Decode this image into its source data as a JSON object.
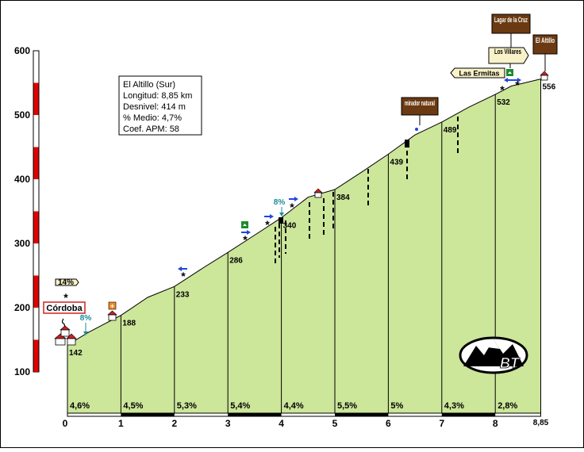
{
  "chart_data": {
    "type": "area",
    "title": "",
    "xlabel": "",
    "ylabel": "",
    "xlim": [
      0,
      8.85
    ],
    "ylim": [
      100,
      600
    ],
    "x_ticks": [
      "0",
      "1",
      "2",
      "3",
      "4",
      "5",
      "6",
      "7",
      "8",
      "8,85"
    ],
    "y_ticks": [
      "100",
      "200",
      "300",
      "400",
      "500",
      "600"
    ],
    "series": [
      {
        "x": [
          0,
          0.4,
          1,
          1.5,
          2,
          2.5,
          3,
          3.5,
          4,
          4.5,
          5,
          5.5,
          6,
          6.5,
          7,
          7.5,
          8,
          8.3,
          8.85
        ],
        "y": [
          142,
          162,
          188,
          216,
          233,
          260,
          286,
          313,
          340,
          372,
          384,
          411,
          439,
          469,
          489,
          512,
          532,
          545,
          556
        ]
      }
    ],
    "km_points": [
      {
        "km": 0,
        "alt": 142,
        "label": "142"
      },
      {
        "km": 1,
        "alt": 188,
        "label": "188"
      },
      {
        "km": 2,
        "alt": 233,
        "label": "233"
      },
      {
        "km": 3,
        "alt": 286,
        "label": "286"
      },
      {
        "km": 4,
        "alt": 340,
        "label": "340"
      },
      {
        "km": 5,
        "alt": 384,
        "label": "384"
      },
      {
        "km": 6,
        "alt": 439,
        "label": "439"
      },
      {
        "km": 7,
        "alt": 489,
        "label": "489"
      },
      {
        "km": 8,
        "alt": 532,
        "label": "532"
      },
      {
        "km": 8.85,
        "alt": 556,
        "label": "556"
      }
    ],
    "segment_gradients": [
      "4,6%",
      "4,5%",
      "5,3%",
      "5,4%",
      "4,4%",
      "5,5%",
      "5%",
      "4,3%",
      "2,8%"
    ],
    "info_box": [
      "El Altillo (Sur)",
      "Longitud: 8,85 km",
      "Desnivel: 414 m",
      "% Medio: 4,7%",
      "Coef. APM: 58"
    ],
    "annotations": {
      "start_name": "Córdoba",
      "max_ramp": "14%",
      "ramp_start": "8%",
      "ramp_km4": "8%",
      "mirador": "mirador natural",
      "las_ermitas": "Las Ermitas",
      "los_villares": "Los Villares",
      "lagar": "Lagar de la Cruz",
      "summit": "El Altillo"
    },
    "colors": {
      "fill": "#cce69a",
      "scale_red": "#e00000",
      "sign_brown": "#6b3a12",
      "sign_cream": "#f8f2c8",
      "arrow_blue": "#1f45e0",
      "ramp_teal": "#1a8c9a"
    }
  }
}
